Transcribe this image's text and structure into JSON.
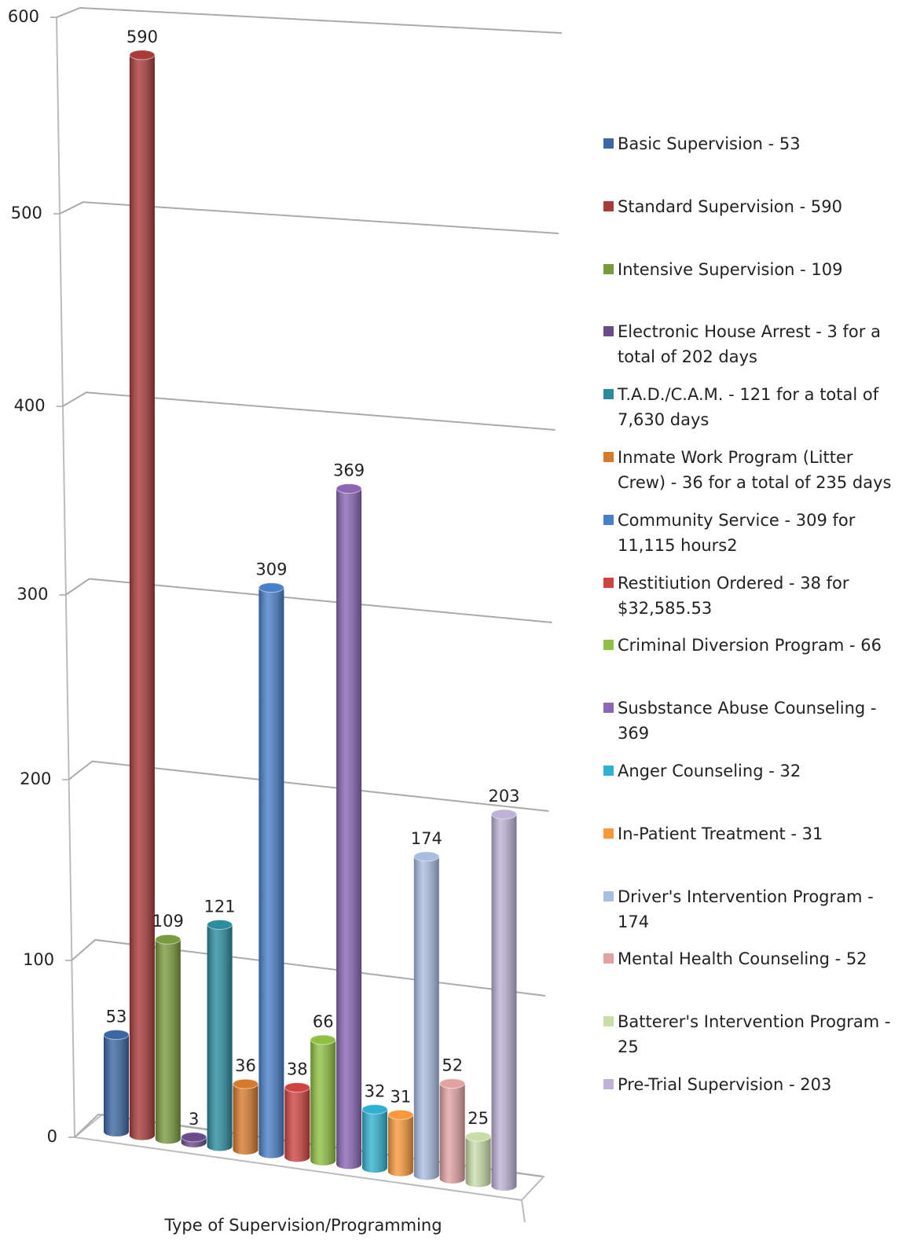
{
  "chart_data": {
    "type": "bar",
    "x_label": "Type of Supervision/Programming",
    "ylim": [
      0,
      600
    ],
    "yticks": [
      0,
      100,
      200,
      300,
      400,
      500,
      600
    ],
    "grid": true,
    "legend": "right",
    "series": [
      {
        "name": "Basic Supervision - 53",
        "color": "#3b66a3",
        "values": [
          53
        ]
      },
      {
        "name": "Standard Supervision - 590",
        "color": "#a93c3a",
        "values": [
          590
        ]
      },
      {
        "name": "Intensive Supervision - 109",
        "color": "#7a9a3e",
        "values": [
          109
        ]
      },
      {
        "name": "Electronic House Arrest - 3 for a total of 202 days",
        "color": "#6a4c8c",
        "values": [
          3
        ]
      },
      {
        "name": "T.A.D./C.A.M. - 121 for a total of 7,630 days",
        "color": "#2b8c9e",
        "values": [
          121
        ]
      },
      {
        "name": "Inmate Work Program (Litter Crew) - 36 for a total of 235 days",
        "color": "#d7792c",
        "values": [
          36
        ]
      },
      {
        "name": "Community Service - 309 for 11,115 hours2",
        "color": "#4a7fc9",
        "values": [
          309
        ]
      },
      {
        "name": "Restitiution Ordered - 38 for $32,585.53",
        "color": "#d04343",
        "values": [
          38
        ]
      },
      {
        "name": "Criminal Diversion Program - 66",
        "color": "#8fc042",
        "values": [
          66
        ]
      },
      {
        "name": "Susbstance Abuse Counseling - 369",
        "color": "#8a66b5",
        "values": [
          369
        ]
      },
      {
        "name": "Anger Counseling - 32",
        "color": "#31b1d1",
        "values": [
          32
        ]
      },
      {
        "name": "In-Patient Treatment - 31",
        "color": "#f8983a",
        "values": [
          31
        ]
      },
      {
        "name": "Driver's Intervention Program - 174",
        "color": "#a9bde1",
        "values": [
          174
        ]
      },
      {
        "name": "Mental Health Counseling - 52",
        "color": "#e2a2a2",
        "values": [
          52
        ]
      },
      {
        "name": "Batterer's Intervention Program - 25",
        "color": "#c9dda9",
        "values": [
          25
        ]
      },
      {
        "name": "Pre-Trial Supervision - 203",
        "color": "#bdb1d5",
        "values": [
          203
        ]
      }
    ]
  }
}
